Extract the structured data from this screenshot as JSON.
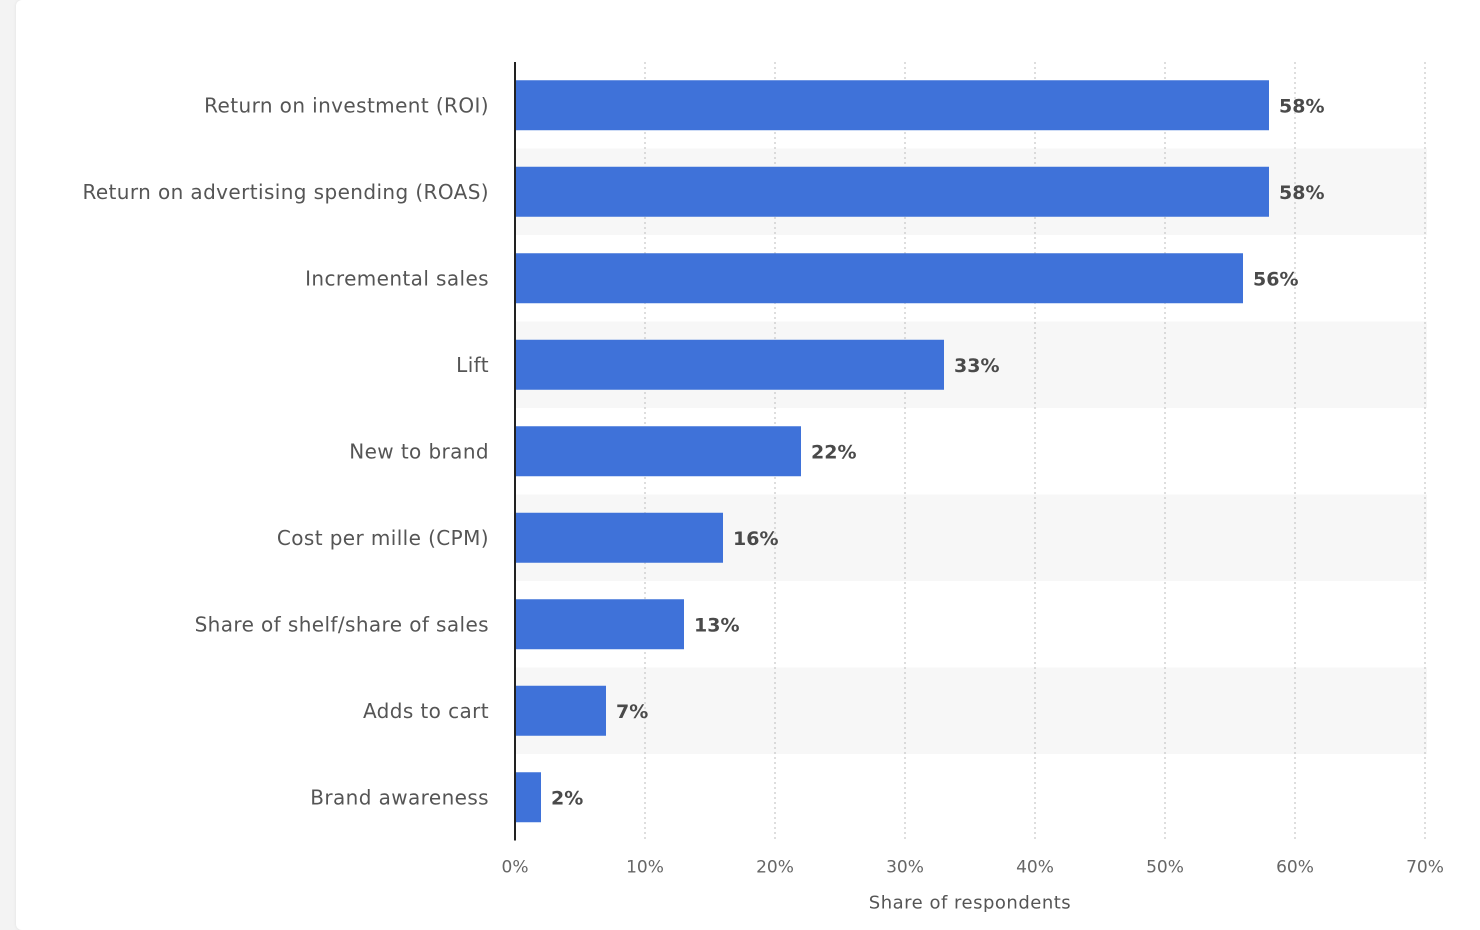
{
  "chart_data": {
    "type": "bar",
    "orientation": "horizontal",
    "categories": [
      "Return on investment (ROI)",
      "Return on advertising spending (ROAS)",
      "Incremental sales",
      "Lift",
      "New to brand",
      "Cost per mille (CPM)",
      "Share of shelf/share of sales",
      "Adds to cart",
      "Brand awareness"
    ],
    "values": [
      58,
      58,
      56,
      33,
      22,
      16,
      13,
      7,
      2
    ],
    "value_labels": [
      "58%",
      "58%",
      "56%",
      "33%",
      "22%",
      "16%",
      "13%",
      "7%",
      "2%"
    ],
    "xlabel": "Share of respondents",
    "ylabel": "",
    "xlim": [
      0,
      70
    ],
    "x_ticks": [
      0,
      10,
      20,
      30,
      40,
      50,
      60,
      70
    ],
    "x_tick_labels": [
      "0%",
      "10%",
      "20%",
      "30%",
      "40%",
      "50%",
      "60%",
      "70%"
    ],
    "grid": true,
    "bar_color": "#3f72d9",
    "stripe_color": "#f7f7f7"
  }
}
